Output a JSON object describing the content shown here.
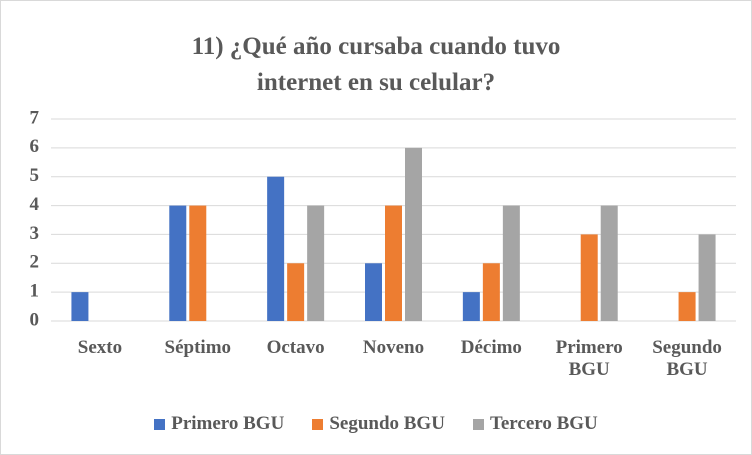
{
  "chart_data": {
    "type": "bar",
    "title": "11) ¿Qué año cursaba cuando tuvo internet en su celular?",
    "categories": [
      "Sexto",
      "Séptimo",
      "Octavo",
      "Noveno",
      "Décimo",
      "Primero BGU",
      "Segundo BGU"
    ],
    "series": [
      {
        "name": "Primero BGU",
        "color": "#4472c4",
        "values": [
          1,
          4,
          5,
          2,
          1,
          0,
          0
        ]
      },
      {
        "name": "Segundo BGU",
        "color": "#ed7d31",
        "values": [
          0,
          4,
          2,
          4,
          2,
          3,
          1
        ]
      },
      {
        "name": "Tercero BGU",
        "color": "#a5a5a5",
        "values": [
          0,
          0,
          4,
          6,
          4,
          4,
          3
        ]
      }
    ],
    "ylim": [
      0,
      7
    ],
    "yticks": [
      0,
      1,
      2,
      3,
      4,
      5,
      6,
      7
    ],
    "grid": true,
    "legend": "bottom"
  }
}
